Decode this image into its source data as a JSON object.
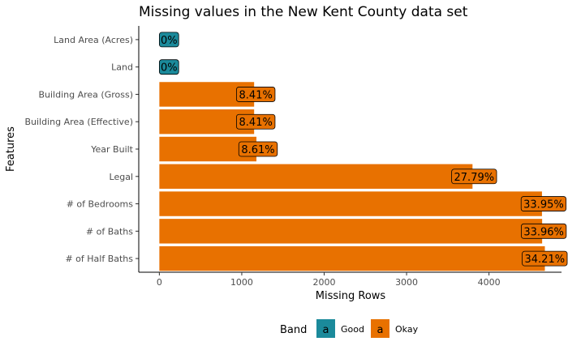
{
  "chart_data": {
    "type": "bar",
    "orientation": "horizontal",
    "title": "Missing values in the New Kent County data set",
    "xlabel": "Missing Rows",
    "ylabel": "Features",
    "xlim": [
      -250,
      4880
    ],
    "x_ticks": [
      0,
      1000,
      2000,
      3000,
      4000
    ],
    "grid": false,
    "categories": [
      "Land Area (Acres)",
      "Land",
      "Building Area (Gross)",
      "Building Area (Effective)",
      "Year Built",
      "Legal",
      "# of Bedrooms",
      "# of Baths",
      "# of Half Baths"
    ],
    "values": [
      0,
      0,
      1150,
      1150,
      1178,
      3800,
      4643,
      4645,
      4678
    ],
    "labels": [
      "0%",
      "0%",
      "8.41%",
      "8.41%",
      "8.61%",
      "27.79%",
      "33.95%",
      "33.96%",
      "34.21%"
    ],
    "bands": [
      "Good",
      "Good",
      "Okay",
      "Okay",
      "Okay",
      "Okay",
      "Okay",
      "Okay",
      "Okay"
    ],
    "legend": {
      "title": "Band",
      "position": "bottom",
      "key_glyph": "a",
      "items": [
        {
          "name": "Good",
          "color": "#1b8a9b"
        },
        {
          "name": "Okay",
          "color": "#e87100"
        }
      ]
    }
  }
}
